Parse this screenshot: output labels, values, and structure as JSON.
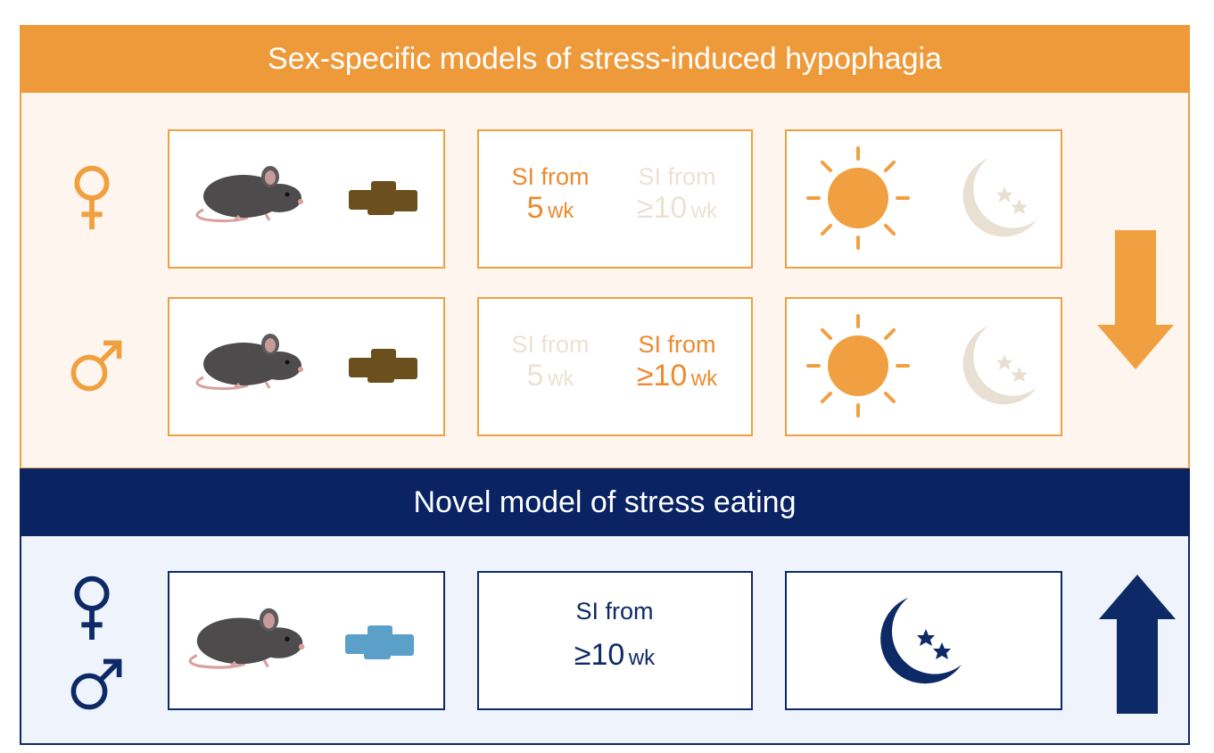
{
  "sections": [
    {
      "title": "Sex-specific models of stress-induced hypophagia",
      "rows": [
        {
          "onsets": [
            {
              "label": "SI from",
              "value": "5",
              "unit": "wk",
              "active": true
            },
            {
              "label": "SI from",
              "value": "≥10",
              "unit": "wk",
              "active": false
            }
          ]
        },
        {
          "onsets": [
            {
              "label": "SI from",
              "value": "5",
              "unit": "wk",
              "active": false
            },
            {
              "label": "SI from",
              "value": "≥10",
              "unit": "wk",
              "active": true
            }
          ]
        }
      ]
    },
    {
      "title": "Novel model of stress eating",
      "rows": [
        {
          "onsets": [
            {
              "label": "SI from",
              "value": "≥10",
              "unit": "wk",
              "active": true
            }
          ]
        }
      ]
    }
  ]
}
